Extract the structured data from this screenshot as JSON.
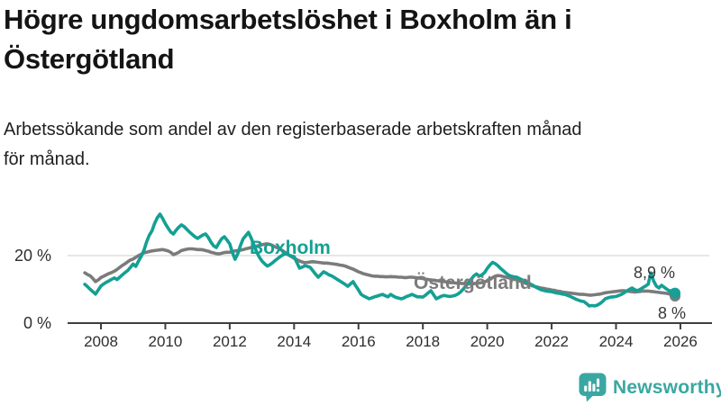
{
  "page": {
    "title_lines": [
      "Högre ungdomsarbetslöshet i Boxholm än i",
      "Östergötland"
    ],
    "subtitle_lines": [
      "Arbetssökande som andel av den registerbaserade arbetskraften månad",
      "för månad."
    ]
  },
  "footer": {
    "brand": "Newsworthy"
  },
  "colors": {
    "boxholm": "#14a094",
    "ostergotland": "#7b7b7b",
    "axis": "#3f3f3f",
    "grid": "#dedede",
    "tick_text": "#2e2e2e",
    "title_text": "#141414",
    "value_label_text": "#383838",
    "brand": "#3aa7a2"
  },
  "chart_data": {
    "type": "line",
    "title": "Högre ungdomsarbetslöshet i Boxholm än i Östergötland",
    "subtitle": "Arbetssökande som andel av den registerbaserade arbetskraften månad för månad.",
    "unit": "%",
    "frequency": "monthly",
    "x_start": "2007-07",
    "x_end": "2025-11",
    "x_start_year": 2007.5,
    "points_per_year": 12,
    "x_ticks": [
      2008,
      2010,
      2012,
      2014,
      2016,
      2018,
      2020,
      2022,
      2024,
      2026
    ],
    "y_ticks": [
      {
        "value": 0,
        "label": "0 %"
      },
      {
        "value": 20,
        "label": "20 %"
      }
    ],
    "ylim": [
      0,
      35
    ],
    "grid": "horizontal-20-only",
    "legend_position": "inline-labels",
    "series": [
      {
        "name": "Boxholm",
        "color": "#14a094",
        "end_label": "8,9 %",
        "end_value": 8.9,
        "values": [
          11.5,
          10.8,
          10.0,
          9.3,
          8.6,
          9.8,
          11.0,
          11.6,
          12.1,
          12.5,
          13.0,
          13.4,
          12.9,
          13.6,
          14.3,
          15.0,
          15.6,
          16.5,
          17.5,
          16.8,
          18.4,
          19.8,
          21.5,
          24.0,
          26.0,
          27.3,
          29.5,
          31.2,
          32.3,
          31.0,
          29.5,
          28.2,
          27.0,
          26.4,
          27.5,
          28.4,
          29.1,
          28.6,
          27.8,
          27.0,
          26.3,
          25.6,
          25.1,
          25.6,
          26.1,
          26.4,
          25.4,
          24.0,
          22.9,
          22.4,
          23.8,
          25.0,
          25.6,
          24.6,
          23.5,
          20.9,
          18.9,
          20.5,
          23.0,
          25.0,
          25.9,
          26.9,
          25.2,
          23.2,
          21.2,
          19.6,
          18.4,
          17.6,
          16.9,
          17.3,
          17.9,
          18.6,
          19.2,
          19.8,
          20.3,
          20.6,
          20.2,
          19.9,
          19.7,
          18.0,
          16.3,
          16.6,
          17.0,
          16.8,
          16.5,
          15.5,
          14.5,
          13.6,
          14.4,
          15.2,
          14.8,
          14.3,
          14.0,
          13.5,
          13.0,
          12.5,
          12.0,
          11.5,
          10.9,
          11.6,
          12.3,
          11.0,
          9.8,
          8.5,
          8.0,
          7.6,
          7.2,
          7.5,
          7.8,
          8.0,
          8.3,
          8.5,
          8.1,
          7.8,
          8.5,
          8.0,
          7.6,
          7.4,
          7.2,
          7.5,
          7.9,
          8.2,
          8.5,
          8.1,
          7.8,
          7.8,
          7.7,
          8.3,
          9.0,
          9.6,
          8.4,
          7.2,
          7.6,
          8.0,
          8.2,
          8.0,
          7.9,
          8.0,
          8.2,
          8.6,
          9.2,
          10.0,
          11.0,
          12.0,
          13.0,
          14.0,
          14.6,
          13.9,
          14.3,
          15.0,
          16.2,
          17.2,
          18.0,
          17.6,
          17.0,
          16.2,
          15.5,
          14.8,
          14.2,
          13.9,
          13.7,
          13.6,
          13.2,
          12.8,
          12.4,
          12.0,
          11.6,
          11.2,
          10.7,
          10.3,
          9.9,
          9.7,
          9.5,
          9.4,
          9.3,
          9.1,
          8.9,
          8.8,
          8.6,
          8.5,
          8.2,
          7.9,
          7.5,
          7.1,
          6.8,
          6.5,
          6.4,
          5.8,
          5.1,
          5.2,
          5.1,
          5.3,
          5.8,
          6.4,
          7.2,
          7.5,
          7.7,
          7.8,
          7.9,
          8.2,
          8.5,
          9.0,
          9.5,
          10.0,
          10.4,
          9.9,
          9.6,
          10.0,
          10.5,
          11.0,
          11.5,
          14.9,
          12.5,
          11.0,
          10.4,
          11.2,
          10.6,
          10.0,
          9.5,
          9.7,
          8.9
        ]
      },
      {
        "name": "Östergötland",
        "color": "#7b7b7b",
        "end_label": "8 %",
        "end_value": 8.0,
        "values": [
          14.9,
          14.4,
          14.0,
          13.2,
          12.3,
          12.8,
          13.5,
          13.9,
          14.3,
          14.7,
          15.0,
          15.4,
          15.9,
          16.5,
          17.1,
          17.6,
          18.2,
          18.7,
          19.0,
          19.5,
          20.0,
          20.4,
          20.8,
          21.0,
          21.2,
          21.4,
          21.5,
          21.6,
          21.7,
          21.8,
          21.6,
          21.4,
          21.0,
          20.3,
          20.6,
          21.0,
          21.5,
          21.7,
          21.9,
          22.0,
          22.0,
          21.9,
          21.8,
          21.8,
          21.7,
          21.5,
          21.3,
          21.0,
          20.8,
          20.6,
          20.5,
          20.7,
          20.9,
          21.0,
          21.0,
          21.2,
          21.4,
          21.5,
          21.6,
          21.8,
          22.0,
          22.2,
          22.4,
          22.6,
          22.8,
          23.0,
          23.2,
          23.4,
          23.5,
          23.3,
          23.0,
          22.6,
          22.2,
          21.8,
          21.3,
          20.8,
          20.2,
          19.7,
          19.2,
          18.8,
          18.4,
          18.1,
          17.9,
          18.0,
          18.1,
          18.2,
          18.1,
          18.0,
          17.9,
          17.8,
          17.8,
          17.7,
          17.6,
          17.5,
          17.4,
          17.2,
          17.1,
          16.9,
          16.6,
          16.3,
          16.0,
          15.6,
          15.2,
          14.9,
          14.6,
          14.4,
          14.2,
          14.0,
          13.9,
          13.9,
          13.8,
          13.8,
          13.7,
          13.7,
          13.8,
          13.7,
          13.7,
          13.6,
          13.6,
          13.5,
          13.5,
          13.6,
          13.6,
          13.5,
          13.4,
          13.3,
          13.2,
          13.0,
          12.9,
          12.8,
          12.7,
          12.6,
          12.5,
          12.4,
          12.3,
          12.2,
          12.1,
          12.0,
          11.9,
          11.8,
          11.8,
          11.7,
          11.7,
          11.6,
          11.6,
          11.7,
          11.8,
          11.9,
          12.0,
          12.2,
          12.5,
          13.0,
          13.5,
          13.9,
          14.1,
          14.0,
          13.8,
          13.6,
          13.4,
          13.2,
          13.0,
          12.8,
          12.5,
          12.2,
          11.9,
          11.6,
          11.3,
          11.0,
          10.8,
          10.6,
          10.4,
          10.3,
          10.1,
          10.0,
          9.8,
          9.7,
          9.5,
          9.4,
          9.2,
          9.1,
          9.0,
          8.9,
          8.8,
          8.7,
          8.6,
          8.5,
          8.5,
          8.4,
          8.3,
          8.3,
          8.4,
          8.5,
          8.6,
          8.8,
          9.0,
          9.1,
          9.2,
          9.3,
          9.4,
          9.5,
          9.6,
          9.6,
          9.5,
          9.4,
          9.3,
          9.2,
          9.3,
          9.4,
          9.5,
          9.5,
          9.5,
          9.4,
          9.3,
          9.2,
          9.1,
          9.0,
          8.9,
          8.8,
          8.6,
          8.3,
          8.0
        ]
      }
    ]
  }
}
